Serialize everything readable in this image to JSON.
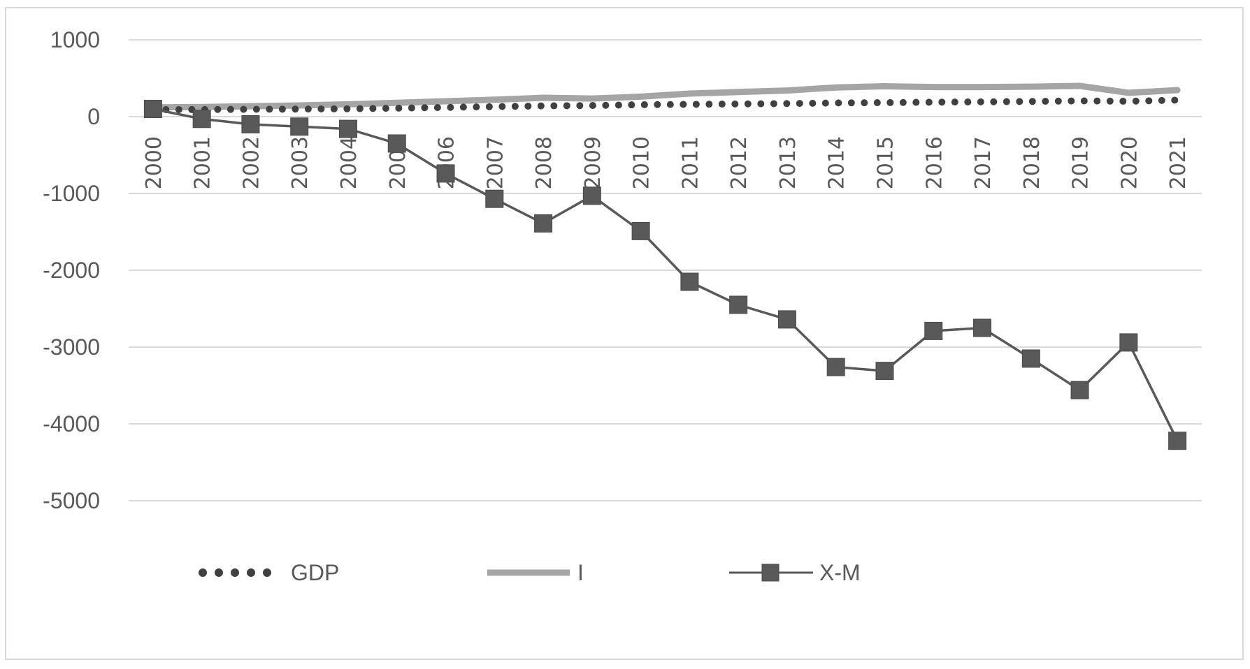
{
  "chart_data": {
    "type": "line",
    "title": "",
    "xlabel": "",
    "ylabel": "",
    "categories": [
      "2000",
      "2001",
      "2002",
      "2003",
      "2004",
      "2005",
      "2006",
      "2007",
      "2008",
      "2009",
      "2010",
      "2011",
      "2012",
      "2013",
      "2014",
      "2015",
      "2016",
      "2017",
      "2018",
      "2019",
      "2020",
      "2021"
    ],
    "ylim": [
      -5000,
      1000
    ],
    "yticks": [
      "1000",
      "0",
      "-1000",
      "-2000",
      "-3000",
      "-4000",
      "-5000"
    ],
    "grid": true,
    "legend_position": "bottom",
    "series": [
      {
        "name": "GDP",
        "style": "round-dot",
        "color": "#404040",
        "values": [
          90,
          92,
          95,
          98,
          102,
          110,
          120,
          130,
          140,
          145,
          155,
          160,
          165,
          170,
          178,
          182,
          188,
          192,
          198,
          205,
          200,
          215
        ]
      },
      {
        "name": "I",
        "style": "thick-solid",
        "color": "#a5a5a5",
        "values": [
          120,
          125,
          135,
          145,
          160,
          180,
          200,
          220,
          245,
          235,
          260,
          300,
          320,
          340,
          380,
          395,
          385,
          385,
          390,
          400,
          310,
          345
        ]
      },
      {
        "name": "X-M",
        "style": "solid-square-markers",
        "color": "#595959",
        "values": [
          100,
          -30,
          -100,
          -130,
          -160,
          -350,
          -740,
          -1070,
          -1390,
          -1030,
          -1490,
          -2150,
          -2450,
          -2640,
          -3260,
          -3310,
          -2790,
          -2750,
          -3150,
          -3560,
          -2940,
          -4220
        ]
      }
    ]
  }
}
